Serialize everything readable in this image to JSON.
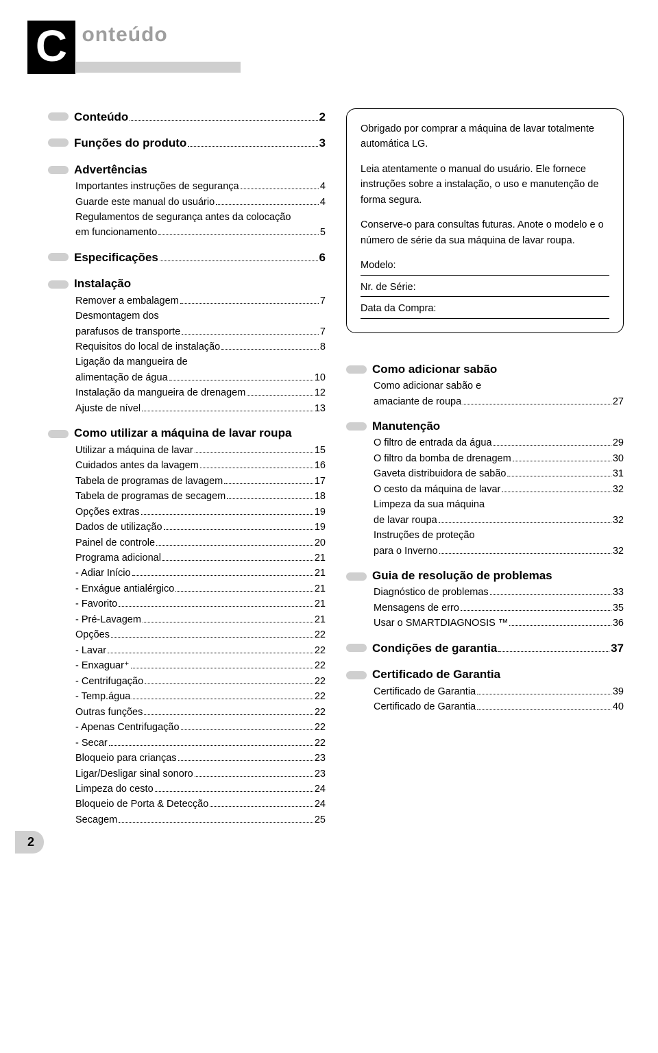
{
  "header": {
    "big_letter": "C",
    "rest": "onteúdo"
  },
  "left": {
    "sections": [
      {
        "title": "Conteúdo",
        "page": "2",
        "items": []
      },
      {
        "title": "Funções do produto",
        "page": "3",
        "items": []
      },
      {
        "title": "Advertências",
        "items": [
          {
            "label": "Importantes instruções de segurança",
            "page": "4"
          },
          {
            "label": "Guarde este manual do usuário",
            "page": "4"
          },
          {
            "label": "Regulamentos de segurança antes da colocação em funcionamento",
            "page": "5"
          }
        ]
      },
      {
        "title": "Especificações",
        "page": "6",
        "items": []
      },
      {
        "title": "Instalação",
        "items": [
          {
            "label": "Remover a embalagem",
            "page": "7"
          },
          {
            "label": "Desmontagem dos parafusos de transporte",
            "page": "7"
          },
          {
            "label": "Requisitos do local de instalação",
            "page": "8"
          },
          {
            "label": "Ligação da mangueira de alimentação de água",
            "page": "10"
          },
          {
            "label": "Instalação da mangueira de drenagem",
            "page": "12"
          },
          {
            "label": "Ajuste de nível",
            "page": "13"
          }
        ]
      },
      {
        "title": "Como utilizar a máquina de lavar roupa",
        "items": [
          {
            "label": "Utilizar a máquina de lavar",
            "page": "15"
          },
          {
            "label": "Cuidados antes da lavagem",
            "page": "16"
          },
          {
            "label": "Tabela de programas de lavagem",
            "page": "17"
          },
          {
            "label": "Tabela de programas de secagem",
            "page": "18"
          },
          {
            "label": "Opções extras",
            "page": "19"
          },
          {
            "label": "Dados de utilização",
            "page": "19"
          },
          {
            "label": "Painel de controle",
            "page": "20"
          },
          {
            "label": "Programa adicional",
            "page": "21"
          },
          {
            "label": "- Adiar Início",
            "page": "21"
          },
          {
            "label": "- Enxágue antialérgico",
            "page": "21"
          },
          {
            "label": "- Favorito",
            "page": "21"
          },
          {
            "label": "- Pré-Lavagem",
            "page": "21"
          },
          {
            "label": "Opções",
            "page": "22"
          },
          {
            "label": "- Lavar",
            "page": "22"
          },
          {
            "label": "- Enxaguar⁺",
            "page": "22"
          },
          {
            "label": "- Centrifugação",
            "page": "22"
          },
          {
            "label": "- Temp.água",
            "page": "22"
          },
          {
            "label": "Outras funções",
            "page": "22"
          },
          {
            "label": "- Apenas Centrifugação",
            "page": "22"
          },
          {
            "label": "- Secar",
            "page": "22"
          },
          {
            "label": "Bloqueio para crianças",
            "page": "23"
          },
          {
            "label": "Ligar/Desligar sinal sonoro",
            "page": "23"
          },
          {
            "label": "Limpeza do cesto",
            "page": "24"
          },
          {
            "label": "Bloqueio de Porta & Detecção",
            "page": "24"
          },
          {
            "label": "Secagem",
            "page": "25"
          }
        ]
      }
    ]
  },
  "callout": {
    "p1": "Obrigado por comprar a máquina de lavar totalmente automática LG.",
    "p2": "Leia atentamente o manual do usuário. Ele fornece instruções sobre a instalação, o uso e manutenção de forma segura.",
    "p3": "Conserve-o para consultas futuras. Anote o modelo e o número de série da sua máquina de lavar roupa.",
    "modelo": "Modelo:",
    "serie": "Nr. de Série:",
    "data": "Data da Compra:"
  },
  "right": {
    "sections": [
      {
        "title": "Como adicionar sabão",
        "items": [
          {
            "label": "Como adicionar sabão e amaciante de roupa",
            "page": "27"
          }
        ]
      },
      {
        "title": "Manutenção",
        "items": [
          {
            "label": "O filtro de entrada da água",
            "page": "29"
          },
          {
            "label": "O filtro da bomba de drenagem",
            "page": "30"
          },
          {
            "label": "Gaveta distribuidora de sabão",
            "page": "31"
          },
          {
            "label": "O cesto da máquina de lavar",
            "page": "32"
          },
          {
            "label": "Limpeza da sua máquina de lavar roupa",
            "page": "32"
          },
          {
            "label": "Instruções de proteção para o Inverno",
            "page": "32"
          }
        ]
      },
      {
        "title": "Guia de resolução de problemas",
        "items": [
          {
            "label": "Diagnóstico de problemas",
            "page": "33"
          },
          {
            "label": "Mensagens de erro",
            "page": "35"
          },
          {
            "label": "Usar o SMARTDIAGNOSIS ™",
            "page": "36"
          }
        ]
      },
      {
        "title": "Condições de garantia",
        "page": "37",
        "items": []
      },
      {
        "title": "Certificado de Garantia",
        "items": [
          {
            "label": "Certificado de Garantia",
            "page": "39"
          },
          {
            "label": "Certificado de Garantia",
            "page": "40"
          }
        ]
      }
    ]
  },
  "page_number": "2",
  "colors": {
    "bullet": "#cfcfcf",
    "header_gray": "#9e9e9e",
    "black": "#000000",
    "white": "#ffffff"
  }
}
